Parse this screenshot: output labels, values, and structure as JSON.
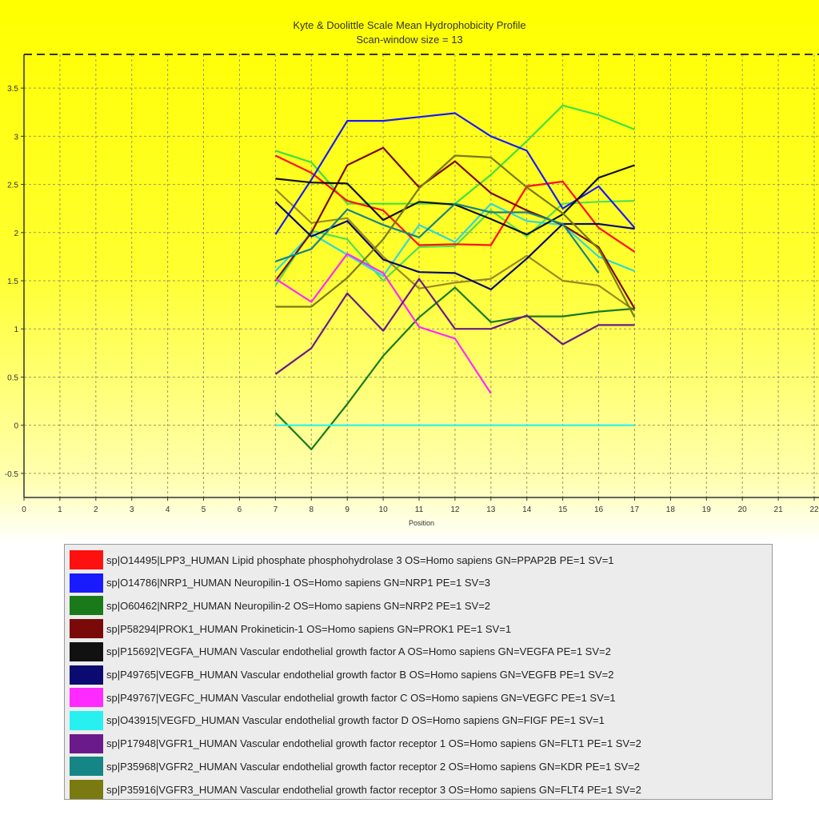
{
  "chart_data": {
    "type": "line",
    "title": "Kyte & Doolittle Scale Mean Hydrophobicity Profile",
    "subtitle": "Scan-window size = 13",
    "xlabel": "Position",
    "ylabel": "",
    "xlim": [
      0,
      22
    ],
    "ylim": [
      -0.75,
      3.85
    ],
    "x_ticks": [
      "0",
      "1",
      "2",
      "3",
      "4",
      "5",
      "6",
      "7",
      "8",
      "9",
      "10",
      "11",
      "12",
      "13",
      "14",
      "15",
      "16",
      "17",
      "18",
      "19",
      "20",
      "21",
      "22"
    ],
    "y_ticks": [
      "-0.5",
      "0",
      "0.5",
      "1",
      "1.5",
      "2",
      "2.5",
      "3",
      "3.5"
    ],
    "grid": true,
    "legend_placement": "bottom",
    "series": [
      {
        "name": "sp|O14495|LPP3_HUMAN Lipid phosphate phosphohydrolase 3 OS=Homo sapiens GN=PPAP2B PE=1 SV=1",
        "color": "#ff1010",
        "x": [
          7,
          8,
          9,
          10,
          11,
          12,
          13,
          14,
          15,
          16,
          17
        ],
        "values": [
          2.8,
          2.62,
          2.33,
          2.23,
          1.87,
          1.88,
          1.87,
          2.48,
          2.53,
          2.05,
          1.8
        ]
      },
      {
        "name": "sp|O14786|NRP1_HUMAN Neuropilin-1 OS=Homo sapiens GN=NRP1 PE=1 SV=3",
        "color": "#1a1aff",
        "x": [
          7,
          8,
          9,
          10,
          11,
          12,
          13,
          14,
          15,
          16,
          17
        ],
        "values": [
          1.98,
          2.55,
          3.16,
          3.16,
          3.2,
          3.24,
          3.0,
          2.85,
          2.25,
          2.48,
          2.05
        ]
      },
      {
        "name": "sp|O60462|NRP2_HUMAN Neuropilin-2 OS=Homo sapiens GN=NRP2 PE=1 SV=2",
        "color": "#1a7a1a",
        "x": [
          7,
          8,
          9,
          10,
          11,
          12,
          13,
          14,
          15,
          16,
          17
        ],
        "values": [
          0.13,
          -0.25,
          0.22,
          0.72,
          1.12,
          1.43,
          1.07,
          1.13,
          1.13,
          1.18,
          1.21
        ]
      },
      {
        "name": "sp|P58294|PROK1_HUMAN Prokineticin-1 OS=Homo sapiens GN=PROK1 PE=1 SV=1",
        "color": "#7a0a0a",
        "x": [
          7,
          8,
          9,
          10,
          11,
          12,
          13,
          14,
          15,
          16,
          17
        ],
        "values": [
          1.5,
          2.0,
          2.7,
          2.88,
          2.47,
          2.74,
          2.41,
          2.23,
          2.08,
          1.85,
          1.21
        ]
      },
      {
        "name": "sp|P15692|VEGFA_HUMAN Vascular endothelial growth factor A OS=Homo sapiens GN=VEGFA PE=1 SV=2",
        "color": "#111111",
        "x": [
          7,
          8,
          9,
          10,
          11,
          12,
          13,
          14,
          15,
          16,
          17
        ],
        "values": [
          2.56,
          2.52,
          2.51,
          2.13,
          2.32,
          2.29,
          2.14,
          1.98,
          2.19,
          2.57,
          2.7
        ]
      },
      {
        "name": "sp|P49765|VEGFB_HUMAN Vascular endothelial growth factor B OS=Homo sapiens GN=VEGFB PE=1 SV=2",
        "color": "#0a0a70",
        "x": [
          7,
          8,
          9,
          10,
          11,
          12,
          13,
          14,
          15,
          16,
          17
        ],
        "values": [
          2.32,
          1.96,
          2.12,
          1.72,
          1.59,
          1.58,
          1.41,
          1.73,
          2.09,
          2.09,
          2.04
        ]
      },
      {
        "name": "sp|P49767|VEGFC_HUMAN Vascular endothelial growth factor C OS=Homo sapiens GN=VEGFC PE=1 SV=1",
        "color": "#ff2aff",
        "x": [
          7,
          8,
          9,
          10,
          11,
          12,
          13
        ],
        "values": [
          1.52,
          1.28,
          1.78,
          1.58,
          1.02,
          0.9,
          0.33
        ]
      },
      {
        "name": "sp|O43915|VEGFD_HUMAN Vascular endothelial growth factor D OS=Homo sapiens GN=FIGF PE=1 SV=1",
        "color": "#28f0f0",
        "x": [
          7,
          8,
          9,
          10,
          11,
          12,
          13,
          14,
          15,
          16,
          17
        ],
        "values": [
          0,
          0,
          0,
          0,
          0,
          0,
          0,
          0,
          0,
          0,
          0
        ]
      },
      {
        "name": "sp|P17948|VGFR1_HUMAN Vascular endothelial growth factor receptor 1 OS=Homo sapiens GN=FLT1 PE=1 SV=2",
        "color": "#6a1a8a",
        "x": [
          7,
          8,
          9,
          10,
          11,
          12,
          13,
          14,
          15,
          16,
          17
        ],
        "values": [
          0.53,
          0.8,
          1.37,
          0.98,
          1.52,
          1.0,
          1.0,
          1.14,
          0.84,
          1.04,
          1.04
        ]
      },
      {
        "name": "sp|P35968|VGFR2_HUMAN Vascular endothelial growth factor receptor 2 OS=Homo sapiens GN=KDR PE=1 SV=2",
        "color": "#158585",
        "x": [
          7,
          8,
          9,
          10,
          11,
          12,
          13,
          14,
          15,
          16
        ],
        "values": [
          1.7,
          1.83,
          2.24,
          2.08,
          1.95,
          2.3,
          2.21,
          2.21,
          2.09,
          1.58
        ]
      },
      {
        "name": "sp|P35916|VGFR3_HUMAN Vascular endothelial growth factor receptor 3 OS=Homo sapiens GN=FLT4 PE=1 SV=2",
        "color": "#7a7a10",
        "x": [
          7,
          8,
          9,
          10,
          11,
          12,
          13,
          14,
          15,
          16,
          17
        ],
        "values": [
          1.23,
          1.23,
          1.53,
          1.93,
          2.46,
          2.8,
          2.78,
          2.47,
          2.2,
          1.83,
          1.12
        ]
      }
    ],
    "extra_lines": [
      {
        "color": "#40e040",
        "x": [
          7,
          8,
          9,
          10,
          11,
          12,
          13,
          14,
          15,
          16,
          17
        ],
        "values": [
          2.85,
          2.73,
          2.3,
          2.3,
          2.3,
          2.3,
          2.6,
          2.95,
          3.32,
          3.22,
          3.07
        ]
      },
      {
        "color": "#50e050",
        "x": [
          7,
          8,
          9,
          10,
          11,
          12,
          13,
          14,
          15,
          16,
          17
        ],
        "values": [
          1.45,
          2.02,
          1.93,
          1.5,
          1.85,
          1.86,
          2.23,
          1.96,
          2.3,
          2.32,
          2.33
        ]
      },
      {
        "color": "#30d8d8",
        "x": [
          7,
          8,
          9,
          10,
          11,
          12,
          13,
          14,
          15,
          16,
          17
        ],
        "values": [
          1.6,
          1.99,
          1.77,
          1.55,
          2.08,
          1.9,
          2.3,
          2.12,
          2.08,
          1.75,
          1.6
        ]
      },
      {
        "color": "#9a8a20",
        "x": [
          7,
          8,
          9,
          10,
          11,
          12,
          13,
          14,
          15,
          16,
          17
        ],
        "values": [
          2.45,
          2.1,
          2.15,
          1.75,
          1.42,
          1.48,
          1.52,
          1.76,
          1.5,
          1.45,
          1.19
        ]
      }
    ]
  }
}
